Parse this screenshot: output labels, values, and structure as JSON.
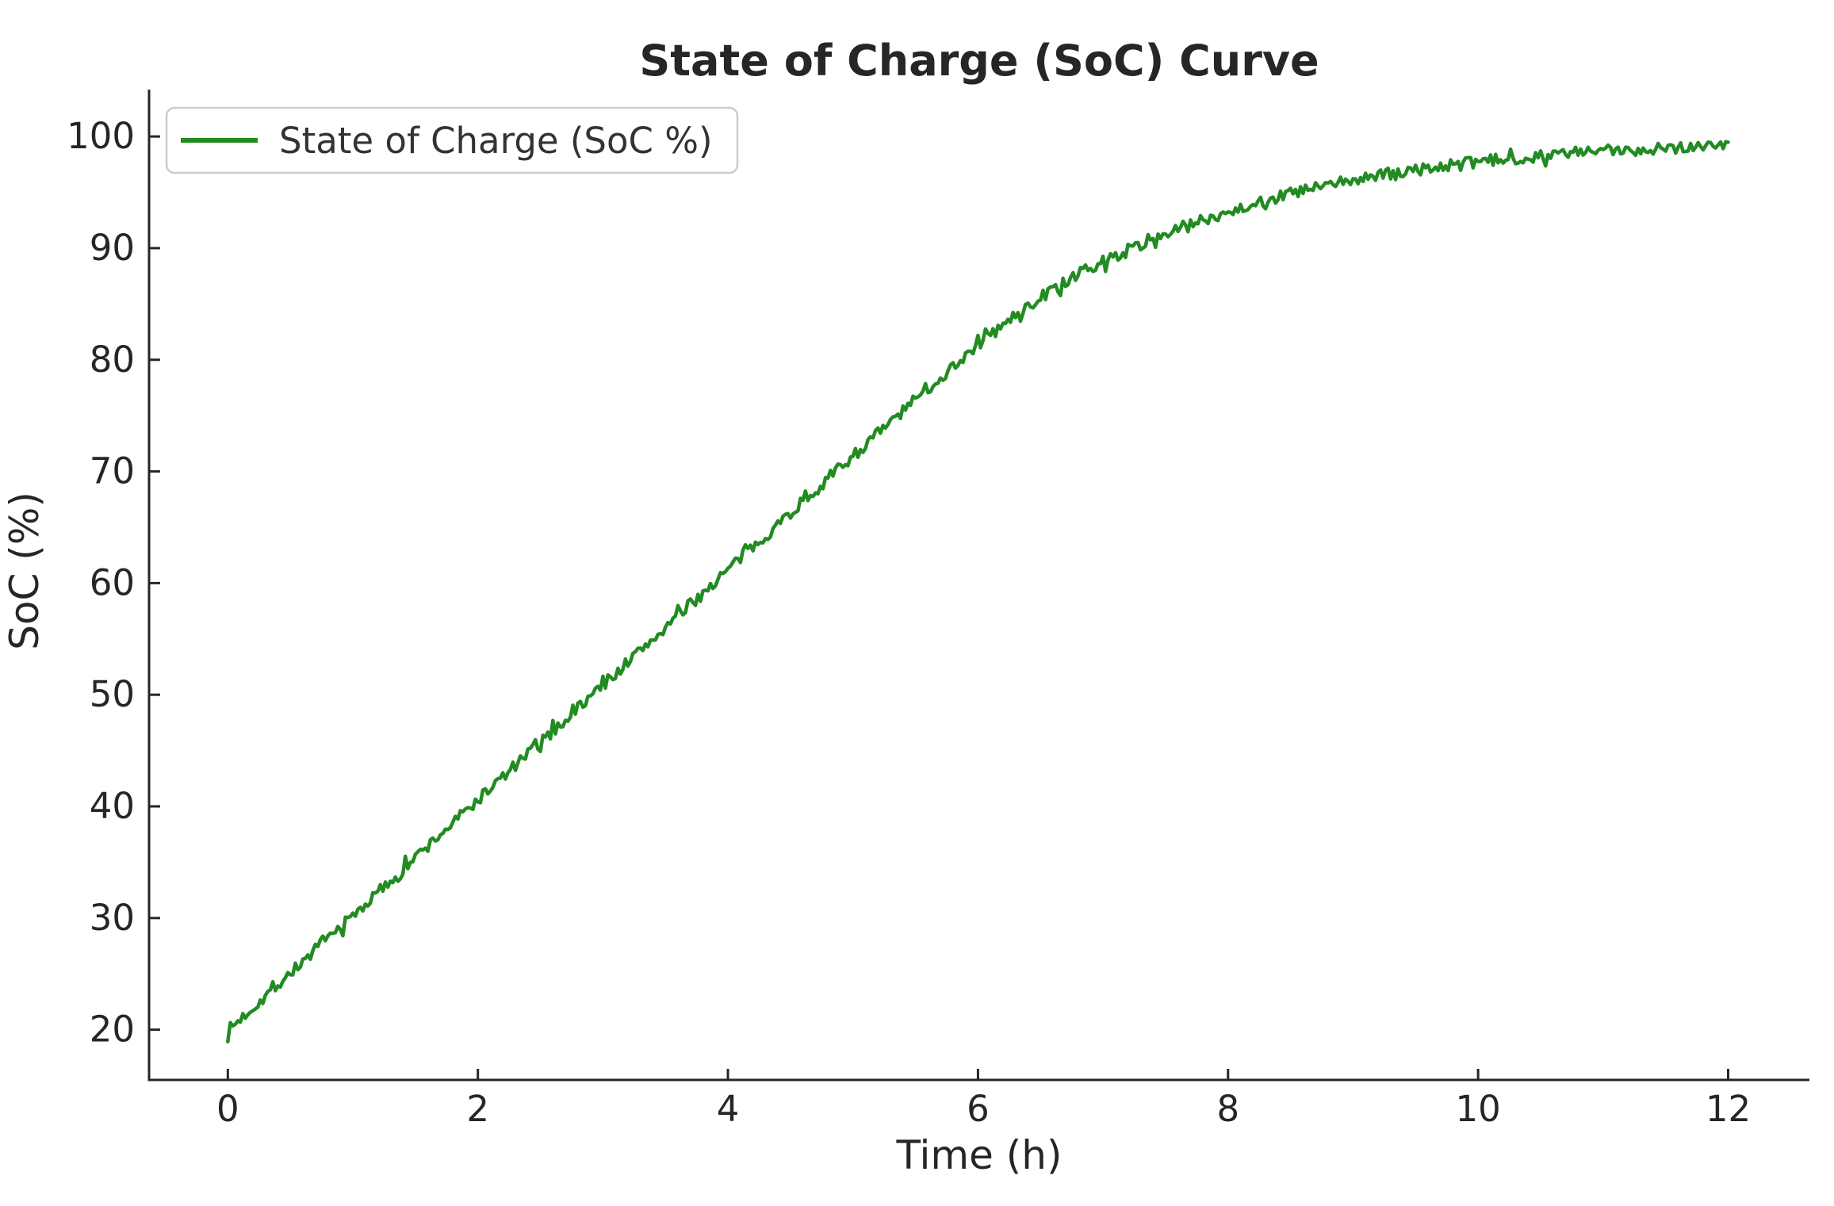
{
  "chart_data": {
    "type": "line",
    "title": "State of Charge (SoC) Curve",
    "xlabel": "Time (h)",
    "ylabel": "SoC (%)",
    "legend": {
      "position": "upper-left",
      "entries": [
        {
          "label": "State of Charge (SoC %)",
          "color": "#228B22"
        }
      ]
    },
    "xlim": [
      -0.63,
      12.65
    ],
    "ylim": [
      15.5,
      104.2
    ],
    "x_ticks": [
      0,
      2,
      4,
      6,
      8,
      10,
      12
    ],
    "y_ticks": [
      20,
      30,
      40,
      50,
      60,
      70,
      80,
      90,
      100
    ],
    "grid": false,
    "series": [
      {
        "name": "State of Charge (SoC %)",
        "color": "#228B22",
        "line_width": 4.5,
        "x": [
          0,
          0.5,
          1,
          1.5,
          2,
          2.5,
          3,
          3.5,
          4,
          4.5,
          5,
          5.5,
          6,
          6.5,
          7,
          7.5,
          8,
          8.5,
          9,
          9.5,
          10,
          10.5,
          11,
          11.5,
          12
        ],
        "y": [
          19.9,
          25.1,
          30.2,
          35.4,
          40.6,
          45.7,
          50.9,
          56.0,
          61.2,
          66.3,
          71.4,
          76.4,
          81.4,
          85.6,
          88.8,
          91.3,
          93.3,
          94.9,
          96.1,
          97.0,
          97.7,
          98.3,
          98.7,
          99.0,
          99.3
        ],
        "noise_amplitude": 0.55,
        "sample_step_h": 0.02
      }
    ],
    "colors": {
      "line": "#228B22",
      "spine": "#262626",
      "text": "#262626",
      "legend_border": "#cccccc",
      "background": "#ffffff"
    }
  }
}
